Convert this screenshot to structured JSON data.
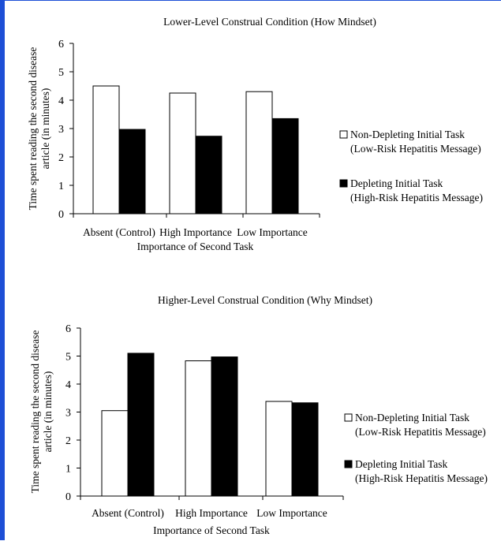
{
  "chart_data": [
    {
      "type": "bar",
      "title": "Lower-Level Construal Condition (How Mindset)",
      "xlabel": "Importance of Second Task",
      "ylabel": [
        "Time spent reading the second disease",
        "article (in minutes)"
      ],
      "categories": [
        "Absent (Control)",
        "High Importance",
        "Low Importance"
      ],
      "ylim": [
        0,
        6
      ],
      "yticks": [
        "0",
        "1",
        "2",
        "3",
        "4",
        "5",
        "6"
      ],
      "series": [
        {
          "name": "Non-Depleting Initial Task",
          "subtitle": "(Low-Risk Hepatitis Message)",
          "color": "#ffffff",
          "values": [
            4.5,
            4.25,
            4.3
          ]
        },
        {
          "name": "Depleting Initial Task",
          "subtitle": "(High-Risk Hepatitis Message)",
          "color": "#000000",
          "values": [
            2.97,
            2.73,
            3.35
          ]
        }
      ],
      "legend": "right",
      "grid": false
    },
    {
      "type": "bar",
      "title": "Higher-Level Construal Condition (Why Mindset)",
      "xlabel": "Importance of Second Task",
      "ylabel": [
        "Time spent reading the second disease",
        "article (in minutes)"
      ],
      "categories": [
        "Absent (Control)",
        "High Importance",
        "Low Importance"
      ],
      "ylim": [
        0,
        6
      ],
      "yticks": [
        "0",
        "1",
        "2",
        "3",
        "4",
        "5",
        "6"
      ],
      "series": [
        {
          "name": "Non-Depleting Initial Task",
          "subtitle": "(Low-Risk Hepatitis Message)",
          "color": "#ffffff",
          "values": [
            3.05,
            4.83,
            3.38
          ]
        },
        {
          "name": "Depleting Initial Task",
          "subtitle": "(High-Risk Hepatitis Message)",
          "color": "#000000",
          "values": [
            5.1,
            4.97,
            3.33
          ]
        }
      ],
      "legend": "right",
      "grid": false
    }
  ]
}
